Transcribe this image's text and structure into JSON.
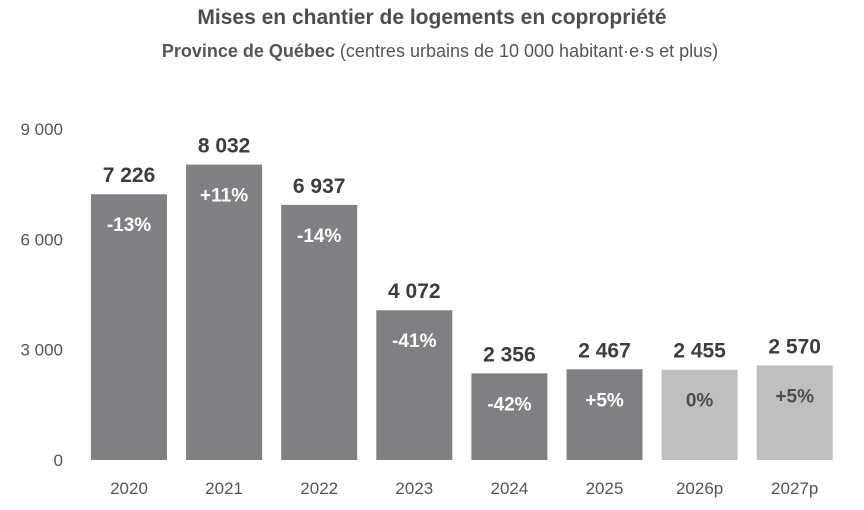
{
  "chart_data": {
    "type": "bar",
    "title": "Mises en chantier de logements en copropriété",
    "subtitle_bold": "Province de Québec",
    "subtitle_rest": " (centres urbains de 10 000 habitant·e·s et plus)",
    "xlabel": "",
    "ylabel": "",
    "ylim": [
      0,
      9000
    ],
    "yticks": [
      {
        "value": 0,
        "label": "0"
      },
      {
        "value": 3000,
        "label": "3 000"
      },
      {
        "value": 6000,
        "label": "6 000"
      },
      {
        "value": 9000,
        "label": "9 000"
      }
    ],
    "grid": false,
    "legend": "none",
    "categories": [
      "2020",
      "2021",
      "2022",
      "2023",
      "2024",
      "2025",
      "2026p",
      "2027p"
    ],
    "values": [
      7226,
      8032,
      6937,
      4072,
      2356,
      2467,
      2455,
      2570
    ],
    "value_labels": [
      "7 226",
      "8 032",
      "6 937",
      "4 072",
      "2 356",
      "2 467",
      "2 455",
      "2 570"
    ],
    "change_labels": [
      "-13%",
      "+11%",
      "-14%",
      "-41%",
      "-42%",
      "+5%",
      "0%",
      "+5%"
    ],
    "projected": [
      false,
      false,
      false,
      false,
      false,
      false,
      true,
      true
    ],
    "colors": {
      "actual": "#808084",
      "projected": "#bfbfbf",
      "change_text_actual": "#ffffff",
      "change_text_projected": "#4d4d4d"
    }
  }
}
